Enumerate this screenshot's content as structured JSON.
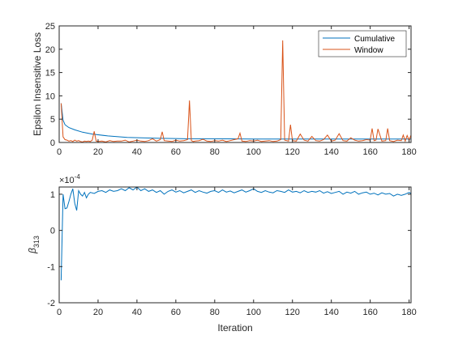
{
  "chart_data": [
    {
      "type": "line",
      "ylabel": "Epsilon Insensitive Loss",
      "xlim": [
        0,
        181
      ],
      "ylim": [
        0,
        25
      ],
      "xticks": [
        0,
        20,
        40,
        60,
        80,
        100,
        120,
        140,
        160,
        180
      ],
      "yticks": [
        0,
        5,
        10,
        15,
        20,
        25
      ],
      "grid": false,
      "legend": "top-right",
      "series": [
        {
          "name": "Cumulative",
          "color": "#0072BD",
          "x": [
            1,
            2,
            3,
            5,
            8,
            12,
            17,
            25,
            35,
            50,
            65,
            80,
            100,
            120,
            140,
            160,
            181
          ],
          "values": [
            8.4,
            4.8,
            3.8,
            3.2,
            2.7,
            2.2,
            1.8,
            1.4,
            1.1,
            0.9,
            0.8,
            0.8,
            0.75,
            0.75,
            0.75,
            0.75,
            0.75
          ]
        },
        {
          "name": "Window",
          "color": "#D95319",
          "x": [
            1,
            2,
            3,
            4,
            5,
            6,
            7,
            8,
            9,
            10,
            11,
            12,
            13,
            14,
            15,
            16,
            17,
            18,
            19,
            20,
            22,
            24,
            26,
            28,
            30,
            32,
            34,
            36,
            38,
            40,
            42,
            44,
            46,
            48,
            50,
            52,
            53,
            54,
            56,
            58,
            60,
            62,
            64,
            66,
            67,
            68,
            69,
            70,
            72,
            74,
            76,
            78,
            80,
            82,
            84,
            86,
            88,
            90,
            92,
            93,
            94,
            96,
            98,
            100,
            102,
            104,
            106,
            108,
            110,
            112,
            114,
            115,
            116,
            118,
            119,
            120,
            122,
            124,
            126,
            128,
            130,
            132,
            134,
            136,
            138,
            140,
            142,
            144,
            146,
            148,
            150,
            152,
            154,
            156,
            158,
            160,
            161,
            162,
            163,
            164,
            166,
            168,
            169,
            170,
            172,
            174,
            176,
            177,
            178,
            179,
            180,
            181
          ],
          "values": [
            8.4,
            1.2,
            0.6,
            0.5,
            0.3,
            0.4,
            0.2,
            0.5,
            0.3,
            0.4,
            0.2,
            0.1,
            0.3,
            0.2,
            0.3,
            0.2,
            0.5,
            2.4,
            0.3,
            0.2,
            0.3,
            0.1,
            0.4,
            0.2,
            0.3,
            0.3,
            0.5,
            0.1,
            0.3,
            0.5,
            0.3,
            0.2,
            0.4,
            0.8,
            0.3,
            0.6,
            2.3,
            0.4,
            0.3,
            0.2,
            0.5,
            0.3,
            0.4,
            0.6,
            9.0,
            0.4,
            0.2,
            0.3,
            0.4,
            0.7,
            0.3,
            0.2,
            0.4,
            0.3,
            0.5,
            0.2,
            0.4,
            0.6,
            0.8,
            2.0,
            0.3,
            0.2,
            0.4,
            0.3,
            0.5,
            0.2,
            0.3,
            0.4,
            0.2,
            0.3,
            0.6,
            21.9,
            0.5,
            0.3,
            3.8,
            0.4,
            0.3,
            1.8,
            0.5,
            0.3,
            1.3,
            0.4,
            0.3,
            0.6,
            1.6,
            0.3,
            0.5,
            1.9,
            0.4,
            0.3,
            1.0,
            0.5,
            0.3,
            0.4,
            0.6,
            0.5,
            3.0,
            0.4,
            0.5,
            2.9,
            0.3,
            0.4,
            3.0,
            0.4,
            0.2,
            0.5,
            0.4,
            1.6,
            0.3,
            1.5,
            0.5,
            1.6
          ]
        }
      ]
    },
    {
      "type": "line",
      "xlabel": "Iteration",
      "ylabel": "β",
      "ylabel_sub": "313",
      "exponent": "×10",
      "exponent_power": "-4",
      "xlim": [
        0,
        181
      ],
      "ylim": [
        -2,
        1.2
      ],
      "xticks": [
        0,
        20,
        40,
        60,
        80,
        100,
        120,
        140,
        160,
        180
      ],
      "yticks": [
        -2,
        -1,
        0,
        1
      ],
      "grid": false,
      "series": [
        {
          "color": "#0072BD",
          "x": [
            1,
            2,
            3,
            4,
            5,
            6,
            7,
            8,
            9,
            10,
            11,
            12,
            13,
            14,
            15,
            16,
            18,
            20,
            22,
            24,
            26,
            28,
            30,
            32,
            34,
            36,
            38,
            40,
            42,
            44,
            46,
            48,
            50,
            52,
            54,
            56,
            58,
            60,
            62,
            64,
            66,
            68,
            70,
            72,
            74,
            76,
            78,
            80,
            82,
            84,
            86,
            88,
            90,
            92,
            94,
            96,
            98,
            100,
            102,
            104,
            106,
            108,
            110,
            112,
            114,
            116,
            118,
            120,
            122,
            124,
            126,
            128,
            130,
            132,
            134,
            136,
            138,
            140,
            142,
            144,
            146,
            148,
            150,
            152,
            154,
            156,
            158,
            160,
            162,
            164,
            166,
            168,
            170,
            172,
            174,
            176,
            178,
            180,
            181
          ],
          "values": [
            -1.38,
            1.0,
            0.6,
            0.62,
            0.8,
            1.0,
            1.15,
            0.75,
            0.55,
            1.1,
            1.0,
            0.95,
            1.05,
            0.9,
            1.0,
            1.05,
            1.02,
            1.08,
            1.1,
            1.05,
            1.12,
            1.08,
            1.1,
            1.15,
            1.1,
            1.18,
            1.12,
            1.2,
            1.1,
            1.15,
            1.08,
            1.12,
            1.05,
            1.1,
            1.0,
            1.08,
            1.12,
            1.06,
            1.1,
            1.04,
            1.08,
            1.12,
            1.05,
            1.1,
            1.06,
            1.03,
            1.08,
            1.1,
            1.05,
            1.12,
            1.06,
            1.09,
            1.04,
            1.08,
            1.12,
            1.06,
            1.1,
            1.15,
            1.08,
            1.05,
            1.1,
            1.06,
            1.04,
            1.1,
            1.08,
            1.05,
            1.12,
            1.06,
            1.08,
            1.04,
            1.1,
            1.05,
            1.08,
            1.06,
            1.1,
            1.03,
            1.07,
            1.02,
            1.05,
            1.08,
            1.0,
            1.06,
            1.03,
            1.08,
            1.0,
            1.04,
            1.06,
            1.0,
            1.03,
            0.98,
            1.04,
            1.0,
            1.02,
            0.95,
            1.0,
            0.97,
            1.0,
            1.05,
            1.02
          ]
        }
      ]
    }
  ]
}
